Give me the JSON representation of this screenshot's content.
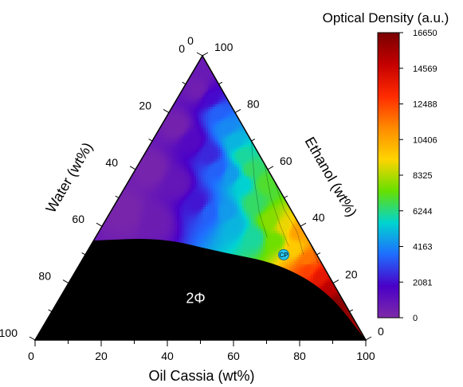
{
  "chart_data": {
    "type": "heatmap",
    "subtype": "ternary-contour",
    "axes": {
      "bottom": {
        "label": "Oil Cassia (wt%)",
        "ticks": [
          "0",
          "20",
          "40",
          "60",
          "80",
          "100"
        ],
        "range": [
          0,
          100
        ]
      },
      "left": {
        "label": "Water (wt%)",
        "ticks": [
          "100",
          "80",
          "60",
          "40",
          "20",
          "0"
        ],
        "range": [
          0,
          100
        ]
      },
      "right": {
        "label": "Ethanol (wt%)",
        "ticks": [
          "0",
          "20",
          "40",
          "60",
          "80",
          "100"
        ],
        "range": [
          0,
          100
        ]
      }
    },
    "colorbar": {
      "title": "Optical Density (a.u.)",
      "min": 0,
      "max": 16650,
      "tick_labels": [
        "16650",
        "14569",
        "12488",
        "10406",
        "8325",
        "6244",
        "4163",
        "2081",
        "0"
      ],
      "colors": [
        "#7a0000",
        "#c40000",
        "#ff2a00",
        "#ff8a00",
        "#ffd400",
        "#66e000",
        "#00d4d0",
        "#1f6dff",
        "#4a00c8",
        "#7e2aa8"
      ]
    },
    "regions": [
      {
        "label": "2Φ",
        "fill": "#000000",
        "boundary_oil_cassia_ethanol": [
          [
            0,
            35
          ],
          [
            20,
            36
          ],
          [
            40,
            31
          ],
          [
            60,
            27
          ],
          [
            80,
            17
          ],
          [
            100,
            0
          ]
        ]
      }
    ],
    "annotations": [
      {
        "label": "CP",
        "oil_cassia": 60,
        "ethanol": 30,
        "color": "#29c8f0"
      }
    ],
    "field_samples": [
      {
        "oil_cassia": 2,
        "ethanol": 96,
        "od": 700
      },
      {
        "oil_cassia": 5,
        "ethanol": 88,
        "od": 500
      },
      {
        "oil_cassia": 5,
        "ethanol": 75,
        "od": 350
      },
      {
        "oil_cassia": 5,
        "ethanol": 60,
        "od": 250
      },
      {
        "oil_cassia": 5,
        "ethanol": 45,
        "od": 200
      },
      {
        "oil_cassia": 10,
        "ethanol": 85,
        "od": 2000
      },
      {
        "oil_cassia": 12,
        "ethanol": 70,
        "od": 1500
      },
      {
        "oil_cassia": 15,
        "ethanol": 55,
        "od": 900
      },
      {
        "oil_cassia": 15,
        "ethanol": 42,
        "od": 600
      },
      {
        "oil_cassia": 15,
        "ethanol": 80,
        "od": 3500
      },
      {
        "oil_cassia": 20,
        "ethanol": 65,
        "od": 2500
      },
      {
        "oil_cassia": 25,
        "ethanol": 48,
        "od": 2200
      },
      {
        "oil_cassia": 20,
        "ethanol": 75,
        "od": 4200
      },
      {
        "oil_cassia": 25,
        "ethanol": 60,
        "od": 3500
      },
      {
        "oil_cassia": 30,
        "ethanol": 45,
        "od": 3500
      },
      {
        "oil_cassia": 25,
        "ethanol": 70,
        "od": 5000
      },
      {
        "oil_cassia": 30,
        "ethanol": 58,
        "od": 4500
      },
      {
        "oil_cassia": 35,
        "ethanol": 45,
        "od": 4500
      },
      {
        "oil_cassia": 30,
        "ethanol": 65,
        "od": 6000
      },
      {
        "oil_cassia": 35,
        "ethanol": 55,
        "od": 5500
      },
      {
        "oil_cassia": 40,
        "ethanol": 40,
        "od": 5000
      },
      {
        "oil_cassia": 35,
        "ethanol": 60,
        "od": 6500
      },
      {
        "oil_cassia": 42,
        "ethanol": 48,
        "od": 6500
      },
      {
        "oil_cassia": 48,
        "ethanol": 36,
        "od": 6000
      },
      {
        "oil_cassia": 42,
        "ethanol": 55,
        "od": 7000
      },
      {
        "oil_cassia": 50,
        "ethanol": 42,
        "od": 7800
      },
      {
        "oil_cassia": 55,
        "ethanol": 35,
        "od": 7500
      },
      {
        "oil_cassia": 55,
        "ethanol": 40,
        "od": 9000
      },
      {
        "oil_cassia": 62,
        "ethanol": 32,
        "od": 9500
      },
      {
        "oil_cassia": 60,
        "ethanol": 38,
        "od": 10500
      },
      {
        "oil_cassia": 68,
        "ethanol": 28,
        "od": 11500
      },
      {
        "oil_cassia": 70,
        "ethanol": 25,
        "od": 12500
      },
      {
        "oil_cassia": 75,
        "ethanol": 22,
        "od": 13800
      },
      {
        "oil_cassia": 80,
        "ethanol": 18,
        "od": 15000
      },
      {
        "oil_cassia": 85,
        "ethanol": 13,
        "od": 16200
      },
      {
        "oil_cassia": 90,
        "ethanol": 8,
        "od": 16000
      },
      {
        "oil_cassia": 95,
        "ethanol": 4,
        "od": 15500
      }
    ]
  }
}
